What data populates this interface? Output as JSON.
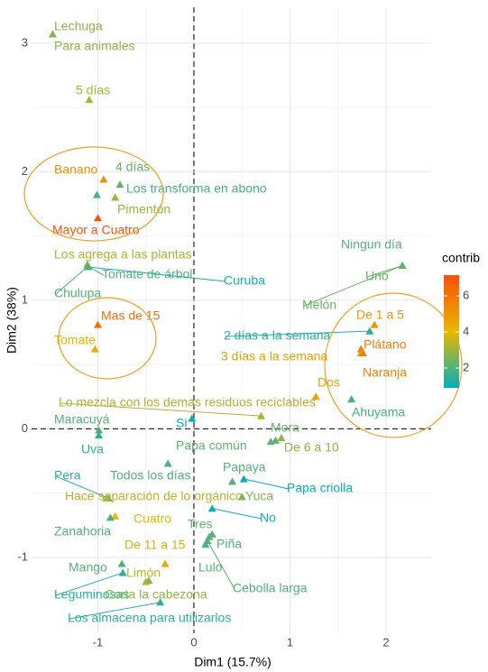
{
  "chart_data": {
    "type": "scatter",
    "x_label": "Dim1 (15.7%)",
    "y_label": "Dim2 (38%)",
    "xlim": [
      -1.69,
      2.47
    ],
    "ylim": [
      -1.59,
      3.28
    ],
    "xticks": [
      -1,
      0,
      1,
      2
    ],
    "yticks": [
      -1,
      0,
      1,
      2,
      3
    ],
    "grid": true,
    "legend": {
      "title": "contrib",
      "position": "right",
      "clim": [
        0.9,
        7.15
      ],
      "ticks": [
        2,
        4,
        6
      ],
      "colors": [
        "#00AFBB",
        "#E7B800",
        "#FC4E07"
      ]
    },
    "points": [
      {
        "label": "Lechuga",
        "x": -1.47,
        "y": 3.07,
        "contrib": 2.8
      },
      {
        "label": "Para animales",
        "x": -1.47,
        "y": 3.07,
        "contrib": 2.8
      },
      {
        "label": "5 días",
        "x": -1.09,
        "y": 2.56,
        "contrib": 3.2
      },
      {
        "label": "Banano",
        "x": -0.94,
        "y": 1.94,
        "contrib": 5.2
      },
      {
        "label": "4 días",
        "x": -0.77,
        "y": 1.9,
        "contrib": 2.2
      },
      {
        "label": "Los transforma en abono",
        "x": -1.01,
        "y": 1.82,
        "contrib": 1.8
      },
      {
        "label": "Pimentón",
        "x": -0.82,
        "y": 1.8,
        "contrib": 3.0
      },
      {
        "label": "Mayor a Cuatro",
        "x": -1.0,
        "y": 1.64,
        "contrib": 7.0
      },
      {
        "label": "Los agrega a las plantas",
        "x": -1.11,
        "y": 1.28,
        "contrib": 3.2
      },
      {
        "label": "Tomate de árbol",
        "x": -1.1,
        "y": 1.26,
        "contrib": 2.0
      },
      {
        "label": "Curuba",
        "x": -1.11,
        "y": 1.26,
        "contrib": 1.2
      },
      {
        "label": "Chulupa",
        "x": -1.11,
        "y": 1.26,
        "contrib": 2.0
      },
      {
        "label": "Mas de 15",
        "x": -1.0,
        "y": 0.81,
        "contrib": 6.2
      },
      {
        "label": "Tomate",
        "x": -1.03,
        "y": 0.62,
        "contrib": 4.2
      },
      {
        "label": "Ningun día",
        "x": 2.17,
        "y": 1.27,
        "contrib": 2.0
      },
      {
        "label": "Uno",
        "x": 2.17,
        "y": 1.27,
        "contrib": 2.3
      },
      {
        "label": "Melón",
        "x": 2.17,
        "y": 1.27,
        "contrib": 2.3
      },
      {
        "label": "De 1 a 5",
        "x": 1.88,
        "y": 0.81,
        "contrib": 5.0
      },
      {
        "label": "2 días a la semana",
        "x": 1.83,
        "y": 0.76,
        "contrib": 1.4
      },
      {
        "label": "Plátano",
        "x": 1.74,
        "y": 0.62,
        "contrib": 5.8
      },
      {
        "label": "3 días a la semana",
        "x": 1.74,
        "y": 0.59,
        "contrib": 4.8
      },
      {
        "label": "Naranja",
        "x": 1.76,
        "y": 0.59,
        "contrib": 5.6
      },
      {
        "label": "Dos",
        "x": 1.27,
        "y": 0.25,
        "contrib": 4.6
      },
      {
        "label": "Ahuyama",
        "x": 1.64,
        "y": 0.23,
        "contrib": 1.8
      },
      {
        "label": "Lo mezcla con los demas residuos reciclables",
        "x": 0.7,
        "y": 0.1,
        "contrib": 3.2
      },
      {
        "label": "Maracuyá",
        "x": -0.99,
        "y": -0.01,
        "contrib": 2.0
      },
      {
        "label": "Si",
        "x": -0.02,
        "y": 0.08,
        "contrib": 1.0
      },
      {
        "label": "Mora",
        "x": 0.8,
        "y": -0.1,
        "contrib": 2.2
      },
      {
        "label": "Papa común",
        "x": 0.85,
        "y": -0.09,
        "contrib": 2.2
      },
      {
        "label": "De 6 a 10",
        "x": 0.91,
        "y": -0.07,
        "contrib": 2.8
      },
      {
        "label": "Uva",
        "x": -0.99,
        "y": -0.05,
        "contrib": 1.5
      },
      {
        "label": "Todos los días",
        "x": -0.27,
        "y": -0.27,
        "contrib": 2.0
      },
      {
        "label": "Pera",
        "x": -0.89,
        "y": -0.54,
        "contrib": 1.6
      },
      {
        "label": "Papaya",
        "x": 0.4,
        "y": -0.41,
        "contrib": 2.0
      },
      {
        "label": "Papa criolla",
        "x": 0.52,
        "y": -0.39,
        "contrib": 1.0
      },
      {
        "label": "Hace separación de lo orgánico",
        "x": -0.91,
        "y": -0.54,
        "contrib": 3.4
      },
      {
        "label": "Yuca",
        "x": 0.5,
        "y": -0.53,
        "contrib": 2.6
      },
      {
        "label": "No",
        "x": 0.19,
        "y": -0.62,
        "contrib": 1.1
      },
      {
        "label": "Cuatro",
        "x": -0.82,
        "y": -0.68,
        "contrib": 4.0
      },
      {
        "label": "Zanahoria",
        "x": -0.87,
        "y": -0.69,
        "contrib": 2.0
      },
      {
        "label": "Tres",
        "x": 0.16,
        "y": -0.84,
        "contrib": 2.2
      },
      {
        "label": "Piña",
        "x": 0.19,
        "y": -0.82,
        "contrib": 2.0
      },
      {
        "label": "De 11 a 15",
        "x": -0.3,
        "y": -1.05,
        "contrib": 4.4
      },
      {
        "label": "Lulo",
        "x": 0.12,
        "y": -0.9,
        "contrib": 2.0
      },
      {
        "label": "Cebolla larga",
        "x": 0.14,
        "y": -0.87,
        "contrib": 2.0
      },
      {
        "label": "Mango",
        "x": -0.75,
        "y": -1.05,
        "contrib": 2.0
      },
      {
        "label": "Limón",
        "x": -0.5,
        "y": -1.19,
        "contrib": 3.4
      },
      {
        "label": "Leguminosas",
        "x": -0.74,
        "y": -1.12,
        "contrib": 1.5
      },
      {
        "label": "Corta la cabezona",
        "x": -0.47,
        "y": -1.18,
        "contrib": 2.8
      },
      {
        "label": "Los almacena para utilizarlos",
        "x": -0.35,
        "y": -1.35,
        "contrib": 1.5
      }
    ]
  }
}
